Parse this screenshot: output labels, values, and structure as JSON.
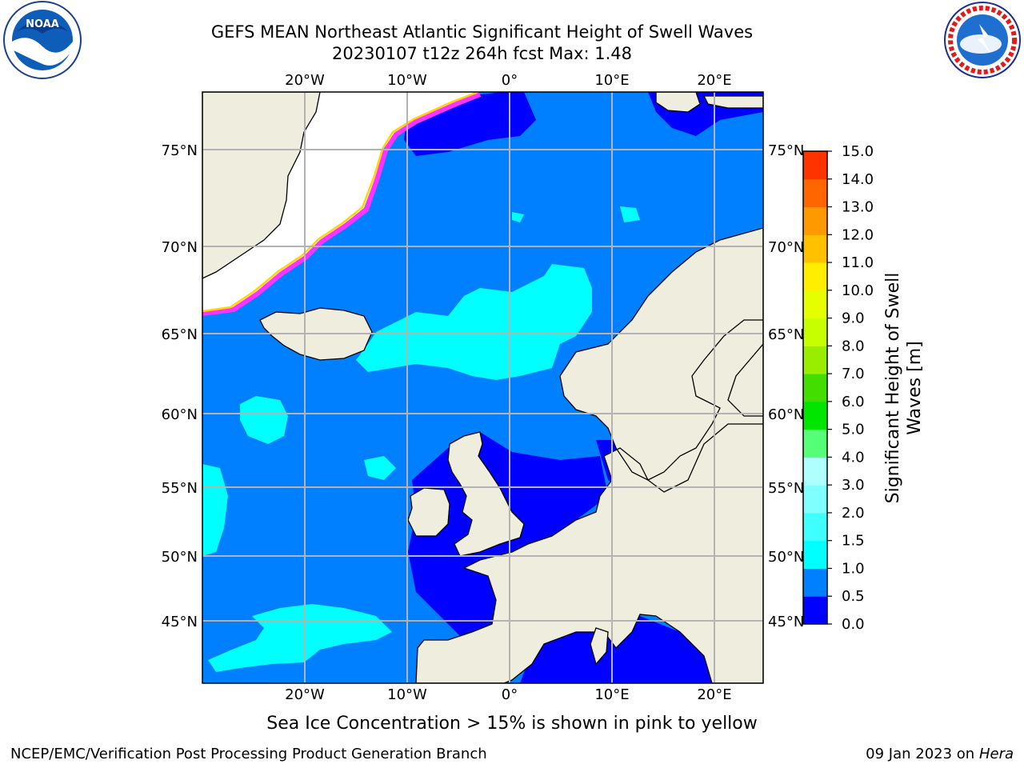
{
  "title_line1": "GEFS MEAN Northeast Atlantic Significant Height of Swell Waves",
  "title_line2": "20230107 t12z 264h fcst   Max: 1.48",
  "footnote": "Sea Ice Concentration > 15% is shown in pink to yellow",
  "footer_left": "NCEP/EMC/Verification Post Processing Product Generation Branch",
  "footer_date": "09 Jan 2023 on",
  "footer_machine": "Hera",
  "logos": {
    "left": "noaa-logo",
    "right": "national-weather-service-logo"
  },
  "map": {
    "lon_labels": [
      "20°W",
      "10°W",
      "0°",
      "10°E",
      "20°E"
    ],
    "lat_labels": [
      "75°N",
      "70°N",
      "65°N",
      "60°N",
      "55°N",
      "50°N",
      "45°N"
    ],
    "colors": {
      "land": "#efedde",
      "ice_free_white": "#ffffff",
      "coast": "#000000",
      "grid": "#b3b3b3",
      "swell_0_0.5": "#0000ff",
      "swell_0.5_1.0": "#0080ff",
      "swell_1.0_1.5": "#00ffff",
      "sea_ice_pink": "#ff33ff",
      "sea_ice_yellow": "#ffd700"
    }
  },
  "colorbar": {
    "label_line1": "Significant Height of Swell",
    "label_line2": "Waves [m]",
    "ticks": [
      "0.0",
      "0.5",
      "1.0",
      "1.5",
      "2.0",
      "3.0",
      "4.0",
      "5.0",
      "6.0",
      "7.0",
      "8.0",
      "9.0",
      "10.0",
      "11.0",
      "12.0",
      "13.0",
      "14.0",
      "15.0"
    ],
    "colors": [
      "#0000ff",
      "#0080ff",
      "#00ffff",
      "#40ffff",
      "#80ffff",
      "#b0ffff",
      "#55ff77",
      "#00e600",
      "#44dd00",
      "#99ee00",
      "#c8ff00",
      "#e6ff00",
      "#ffee00",
      "#ffc000",
      "#ff9900",
      "#ff6600",
      "#ff3300",
      "#ff0000"
    ]
  }
}
